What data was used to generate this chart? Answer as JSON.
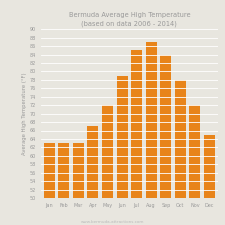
{
  "title": "Bermuda Average High Temperature",
  "subtitle": "(based on data 2006 - 2014)",
  "ylabel": "Average High Temperature (°F)",
  "watermark": "www.bermuda-attractions.com",
  "months": [
    "Jan",
    "Feb",
    "Mar",
    "Apr",
    "May",
    "Jun",
    "Jul",
    "Aug",
    "Sep",
    "Oct",
    "Nov",
    "Dec"
  ],
  "values": [
    63,
    63,
    63,
    67,
    72,
    79,
    85,
    87,
    84,
    78,
    72,
    65
  ],
  "bar_color": "#E8841A",
  "ylim_min": 50,
  "ylim_max": 90,
  "ytick_step": 2,
  "background_color": "#e8e6df",
  "plot_bg_color": "#e8e6df",
  "title_fontsize": 4.8,
  "subtitle_fontsize": 4.4,
  "axis_label_fontsize": 3.8,
  "tick_fontsize": 3.5,
  "grid_color": "#ffffff",
  "grid_linewidth": 0.6,
  "bar_width": 0.75
}
